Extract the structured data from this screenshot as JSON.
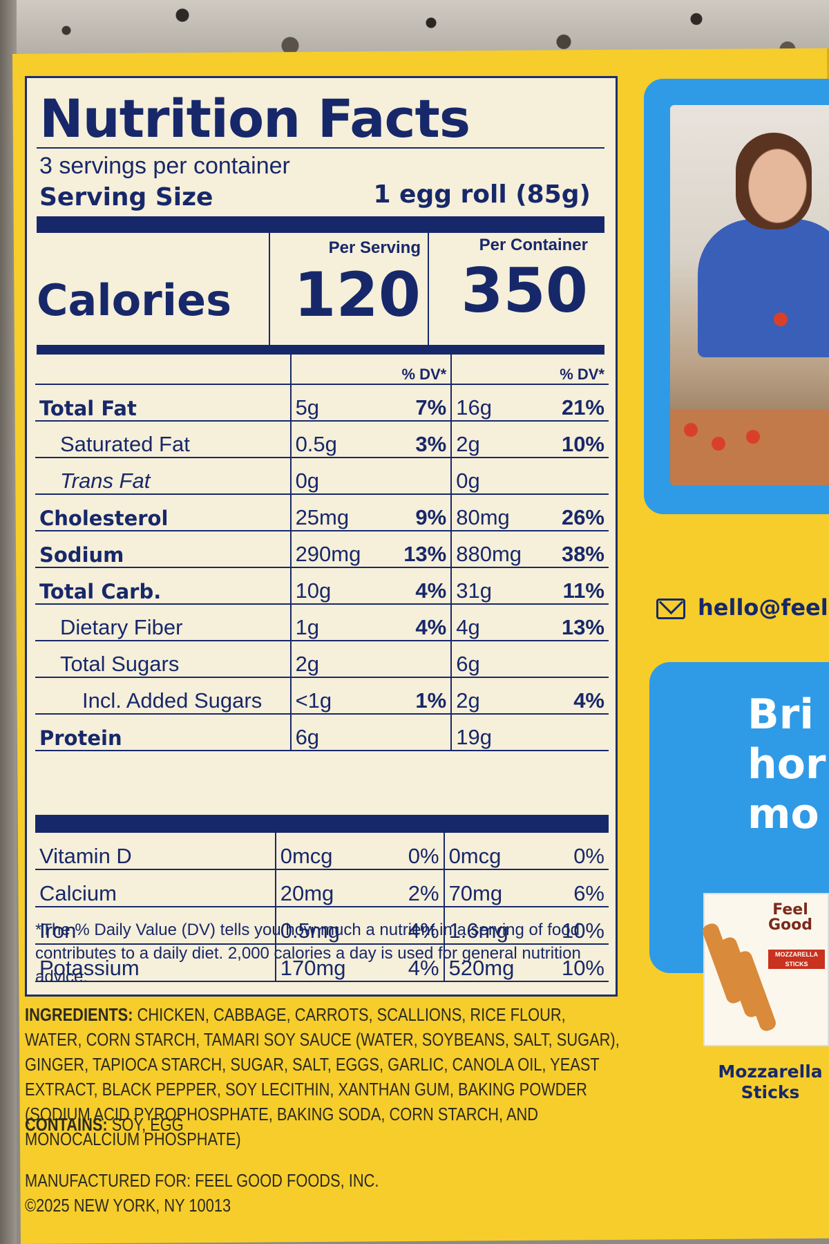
{
  "panel": {
    "title": "Nutrition Facts",
    "servings": "3 servings per container",
    "serving_size_label": "Serving Size",
    "serving_size_value": "1 egg roll (85g)",
    "calories_label": "Calories",
    "per_serving_label": "Per Serving",
    "per_container_label": "Per Container",
    "calories_per_serving": "120",
    "calories_per_container": "350",
    "dv_label": "% DV*",
    "nutrients": [
      {
        "name": "Total Fat",
        "amt": "5g",
        "pct": "7%",
        "amt2": "16g",
        "pct2": "21%"
      },
      {
        "name": "Saturated Fat",
        "amt": "0.5g",
        "pct": "3%",
        "amt2": "2g",
        "pct2": "10%"
      },
      {
        "name": "Trans Fat",
        "amt": "0g",
        "pct": "",
        "amt2": "0g",
        "pct2": ""
      },
      {
        "name": "Cholesterol",
        "amt": "25mg",
        "pct": "9%",
        "amt2": "80mg",
        "pct2": "26%"
      },
      {
        "name": "Sodium",
        "amt": "290mg",
        "pct": "13%",
        "amt2": "880mg",
        "pct2": "38%"
      },
      {
        "name": "Total Carb.",
        "amt": "10g",
        "pct": "4%",
        "amt2": "31g",
        "pct2": "11%"
      },
      {
        "name": "Dietary Fiber",
        "amt": "1g",
        "pct": "4%",
        "amt2": "4g",
        "pct2": "13%"
      },
      {
        "name": "Total Sugars",
        "amt": "2g",
        "pct": "",
        "amt2": "6g",
        "pct2": ""
      },
      {
        "name": "Incl. Added Sugars",
        "amt": "<1g",
        "pct": "1%",
        "amt2": "2g",
        "pct2": "4%"
      },
      {
        "name": "Protein",
        "amt": "6g",
        "pct": "",
        "amt2": "19g",
        "pct2": ""
      }
    ],
    "vitamins": [
      {
        "name": "Vitamin D",
        "amt": "0mcg",
        "pct": "0%",
        "amt2": "0mcg",
        "pct2": "0%"
      },
      {
        "name": "Calcium",
        "amt": "20mg",
        "pct": "2%",
        "amt2": "70mg",
        "pct2": "6%"
      },
      {
        "name": "Iron",
        "amt": "0.5mg",
        "pct": "4%",
        "amt2": "1.6mg",
        "pct2": "10%"
      },
      {
        "name": "Potassium",
        "amt": "170mg",
        "pct": "4%",
        "amt2": "520mg",
        "pct2": "10%"
      }
    ],
    "footnote": "*The % Daily Value (DV) tells you how much a nutrient in a serving of food contributes to a daily diet. 2,000 calories a day is used for general nutrition advice."
  },
  "ingredients": {
    "label": "INGREDIENTS:",
    "text": " CHICKEN, CABBAGE, CARROTS, SCALLIONS, RICE FLOUR, WATER, CORN STARCH, TAMARI SOY SAUCE (WATER, SOYBEANS, SALT, SUGAR), GINGER, TAPIOCA STARCH, SUGAR, SALT, EGGS, GARLIC, CANOLA OIL, YEAST EXTRACT, BLACK PEPPER, SOY LECITHIN, XANTHAN GUM, BAKING POWDER (SODIUM ACID PYROPHOSPHATE, BAKING SODA, CORN STARCH, AND MONOCALCIUM PHOSPHATE)",
    "contains_label": "CONTAINS:",
    "contains_text": " SOY, EGG",
    "mfg_line1": "MANUFACTURED FOR: FEEL GOOD FOODS, INC.",
    "mfg_line2": "©2025 NEW YORK, NY 10013"
  },
  "side": {
    "email": "hello@feel",
    "promo": "Bri\nhor\nmo",
    "product_logo": "Feel\nGood",
    "product_band": "MOZZARELLA STICKS",
    "product_caption": "Mozzarella\nSticks"
  },
  "colors": {
    "box_yellow": "#f6cd2b",
    "label_navy": "#17286a",
    "panel_cream": "#f6efd9",
    "card_blue": "#2f9be6"
  }
}
